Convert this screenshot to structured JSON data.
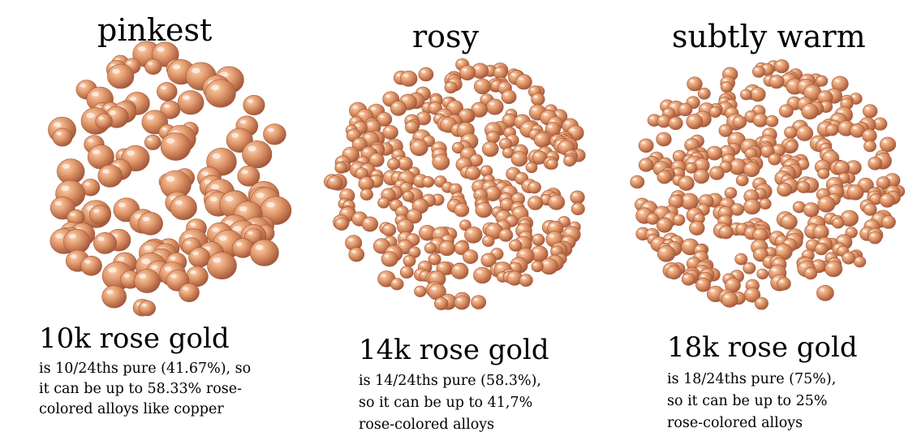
{
  "panels": [
    {
      "heading": "pinkest",
      "karat_title": "10k rose gold",
      "description_lines": [
        "is 10/24ths pure (41.67%), so",
        "it can be up to 58.33% rose-",
        "colored alloys like copper"
      ],
      "image": "rose-gold-beads-10k"
    },
    {
      "heading": "rosy",
      "karat_title": "14k rose gold",
      "description_lines": [
        "is 14/24ths pure (58.3%),",
        "so it can be up to 41,7%",
        "rose-colored alloys"
      ],
      "image": "rose-gold-beads-14k"
    },
    {
      "heading": "subtly warm",
      "karat_title": "18k rose gold",
      "description_lines": [
        "is 18/24ths pure (75%),",
        "so it can be up to 25%",
        "rose-colored alloys"
      ],
      "image": "rose-gold-beads-18k"
    }
  ],
  "colors": {
    "gold_light": "#fbd3b6",
    "gold_mid": "#e39b6d",
    "gold_dark": "#a5583a",
    "text": "#000000",
    "background": "#ffffff"
  }
}
